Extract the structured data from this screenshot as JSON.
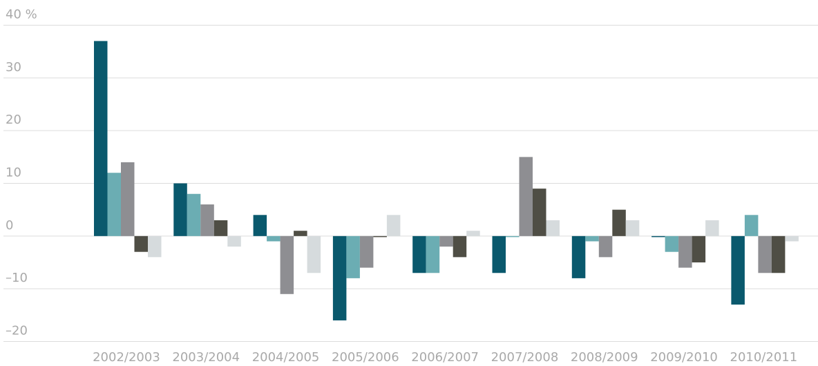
{
  "chart_data": {
    "type": "bar",
    "categories": [
      "2002/2003",
      "2003/2004",
      "2004/2005",
      "2005/2006",
      "2006/2007",
      "2007/2008",
      "2008/2009",
      "2009/2010",
      "2010/2011"
    ],
    "series": [
      {
        "color": "#0a596d",
        "values": [
          37,
          10,
          4,
          -16,
          -7,
          -7,
          -8,
          -0.2,
          -13
        ]
      },
      {
        "color": "#6badb3",
        "values": [
          12,
          8,
          -1,
          -8,
          -7,
          -0.2,
          -1,
          -3,
          4
        ]
      },
      {
        "color": "#8e8e92",
        "values": [
          14,
          6,
          -11,
          -6,
          -2,
          15,
          -4,
          -6,
          -7
        ]
      },
      {
        "color": "#4f4e45",
        "values": [
          -3,
          3,
          1,
          -0.2,
          -4,
          9,
          5,
          -5,
          -7
        ]
      },
      {
        "color": "#d6dbdd",
        "values": [
          -4,
          -2,
          -7,
          4,
          1,
          3,
          3,
          3,
          -1
        ]
      }
    ],
    "ylim": [
      -20,
      40
    ],
    "yticks": [
      {
        "value": -20,
        "label": "–20"
      },
      {
        "value": -10,
        "label": "–10"
      },
      0,
      10,
      20,
      30,
      {
        "value": 40,
        "label": "40 %"
      }
    ],
    "grid": true
  }
}
